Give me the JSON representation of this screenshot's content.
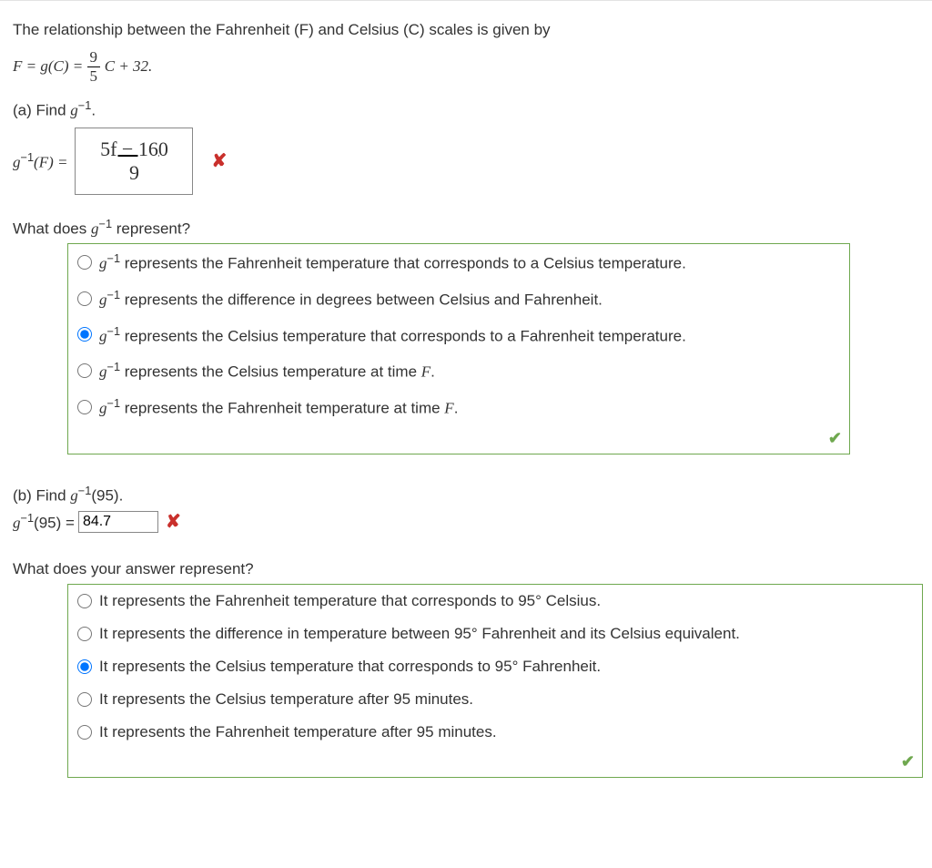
{
  "intro": "The relationship between the Fahrenheit (F) and Celsius (C) scales is given by",
  "formula": {
    "lhs_pre": "F = g(C) = ",
    "frac_num": "9",
    "frac_den": "5",
    "rhs_post": "C + 32."
  },
  "part_a": {
    "prompt_pre": "(a) Find  ",
    "prompt_expr": "g",
    "prompt_sup": "−1",
    "prompt_post": ".",
    "answer_label_pre": "g",
    "answer_label_sup": "−1",
    "answer_label_post": "(F) =",
    "answer_box_num": "5f − 160",
    "answer_box_den": "9",
    "status": "incorrect",
    "mc_question_pre": "What does  ",
    "mc_question_expr": "g",
    "mc_question_sup": "−1",
    "mc_question_post": "  represent?",
    "options": [
      {
        "text_pre": "g",
        "sup": "−1",
        "text_post": " represents the Fahrenheit temperature that corresponds to a Celsius temperature."
      },
      {
        "text_pre": "g",
        "sup": "−1",
        "text_post": " represents the difference in degrees between Celsius and Fahrenheit."
      },
      {
        "text_pre": "g",
        "sup": "−1",
        "text_post": " represents the Celsius temperature that corresponds to a Fahrenheit temperature."
      },
      {
        "text_pre": "g",
        "sup": "−1",
        "text_post": " represents the Celsius temperature at time F."
      },
      {
        "text_pre": "g",
        "sup": "−1",
        "text_post": " represents the Fahrenheit temperature at time F."
      }
    ],
    "selected": 2,
    "mc_status": "correct"
  },
  "part_b": {
    "prompt_pre": "(b) Find  ",
    "prompt_expr": "g",
    "prompt_sup": "−1",
    "prompt_post": "(95).",
    "answer_label_pre": "g",
    "answer_label_sup": "−1",
    "answer_label_post": "(95) = ",
    "answer_value": "84.7",
    "status": "incorrect",
    "mc_question": "What does your answer represent?",
    "options": [
      {
        "text": "It represents the Fahrenheit temperature that corresponds to 95° Celsius."
      },
      {
        "text": "It represents the difference in temperature between 95° Fahrenheit and its Celsius equivalent."
      },
      {
        "text": "It represents the Celsius temperature that corresponds to 95° Fahrenheit."
      },
      {
        "text": "It represents the Celsius temperature after 95 minutes."
      },
      {
        "text": "It represents the Fahrenheit temperature after 95 minutes."
      }
    ],
    "selected": 2,
    "mc_status": "correct"
  },
  "colors": {
    "correct_border": "#6fa84f",
    "incorrect": "#c9302c",
    "radio_accent": "#0075ff"
  }
}
